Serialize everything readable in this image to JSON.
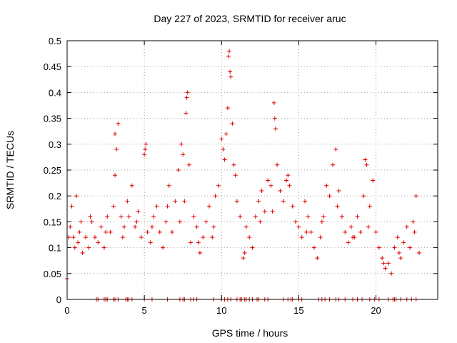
{
  "chart_data": {
    "type": "scatter",
    "title": "Day 227 of 2023, SRMTID for receiver aruc",
    "xlabel": "GPS time / hours",
    "ylabel": "SRMTID / TECUs",
    "xlim": [
      0,
      24
    ],
    "ylim": [
      0,
      0.5
    ],
    "xticks": [
      0,
      5,
      10,
      15,
      20
    ],
    "xtick_labels": [
      "0",
      "5",
      "10",
      "15",
      "20"
    ],
    "yticks": [
      0,
      0.05,
      0.1,
      0.15,
      0.2,
      0.25,
      0.3,
      0.35,
      0.4,
      0.45,
      0.5
    ],
    "ytick_labels": [
      "0",
      "0.05",
      "0.1",
      "0.15",
      "0.2",
      "0.25",
      "0.3",
      "0.35",
      "0.4",
      "0.45",
      "0.5"
    ],
    "grid": true,
    "marker": "+",
    "marker_color": "#e00000",
    "series": [
      {
        "name": "SRMTID",
        "x": [
          0.0,
          0.2,
          0.3,
          0.4,
          0.5,
          0.6,
          0.7,
          0.8,
          1.0,
          1.2,
          1.4,
          1.6,
          1.8,
          2.0,
          2.2,
          2.4,
          2.6,
          2.8,
          3.0,
          3.1,
          3.2,
          3.3,
          3.5,
          3.7,
          3.9,
          4.0,
          4.2,
          4.4,
          4.6,
          4.8,
          5.0,
          5.1,
          5.2,
          5.4,
          5.6,
          5.8,
          6.0,
          6.2,
          6.4,
          6.6,
          6.8,
          7.0,
          7.2,
          7.4,
          7.5,
          7.6,
          7.7,
          7.8,
          7.9,
          8.0,
          8.2,
          8.4,
          8.6,
          8.8,
          9.0,
          9.2,
          9.4,
          9.6,
          9.8,
          10.0,
          10.1,
          10.2,
          10.3,
          10.4,
          10.5,
          10.6,
          10.7,
          10.8,
          11.0,
          11.2,
          11.4,
          11.6,
          11.8,
          12.0,
          12.2,
          12.4,
          12.6,
          12.8,
          13.0,
          13.2,
          13.4,
          13.5,
          13.6,
          13.8,
          14.0,
          14.2,
          14.4,
          14.6,
          14.8,
          15.0,
          15.2,
          15.4,
          15.6,
          15.8,
          16.0,
          16.2,
          16.4,
          16.6,
          16.8,
          17.0,
          17.2,
          17.4,
          17.6,
          17.8,
          18.0,
          18.2,
          18.4,
          18.6,
          18.8,
          19.0,
          19.2,
          19.4,
          19.6,
          19.8,
          20.0,
          20.2,
          20.4,
          20.6,
          20.8,
          21.0,
          21.2,
          21.4,
          21.6,
          21.8,
          22.0,
          22.2,
          22.4,
          22.6,
          22.8,
          0.1,
          0.9,
          1.5,
          2.5,
          3.6,
          4.5,
          5.5,
          6.5,
          7.3,
          8.5,
          9.5,
          10.9,
          11.5,
          12.5,
          13.3,
          14.3,
          15.5,
          16.5,
          17.5,
          18.5,
          19.5,
          20.5,
          21.5,
          22.5,
          10.45,
          10.55,
          7.75,
          13.45,
          3.1,
          5.05,
          19.3
        ],
        "y": [
          0.04,
          0.14,
          0.18,
          0.12,
          0.1,
          0.2,
          0.11,
          0.13,
          0.09,
          0.12,
          0.1,
          0.15,
          0.12,
          0.11,
          0.14,
          0.1,
          0.16,
          0.13,
          0.18,
          0.24,
          0.29,
          0.34,
          0.16,
          0.14,
          0.19,
          0.16,
          0.22,
          0.14,
          0.17,
          0.12,
          0.28,
          0.3,
          0.13,
          0.11,
          0.16,
          0.18,
          0.13,
          0.1,
          0.15,
          0.22,
          0.13,
          0.19,
          0.25,
          0.3,
          0.28,
          0.19,
          0.36,
          0.4,
          0.26,
          0.11,
          0.16,
          0.14,
          0.09,
          0.12,
          0.15,
          0.18,
          0.12,
          0.2,
          0.22,
          0.31,
          0.29,
          0.27,
          0.32,
          0.37,
          0.48,
          0.43,
          0.34,
          0.26,
          0.19,
          0.16,
          0.08,
          0.14,
          0.12,
          0.1,
          0.16,
          0.19,
          0.21,
          0.17,
          0.23,
          0.22,
          0.38,
          0.33,
          0.26,
          0.21,
          0.19,
          0.23,
          0.22,
          0.18,
          0.15,
          0.14,
          0.12,
          0.19,
          0.16,
          0.13,
          0.1,
          0.08,
          0.12,
          0.16,
          0.22,
          0.2,
          0.26,
          0.29,
          0.21,
          0.16,
          0.13,
          0.11,
          0.14,
          0.12,
          0.16,
          0.13,
          0.2,
          0.26,
          0.18,
          0.23,
          0.13,
          0.1,
          0.08,
          0.06,
          0.07,
          0.05,
          0.1,
          0.12,
          0.08,
          0.11,
          0.14,
          0.1,
          0.15,
          0.2,
          0.09,
          0.12,
          0.15,
          0.16,
          0.13,
          0.12,
          0.15,
          0.14,
          0.18,
          0.15,
          0.11,
          0.14,
          0.24,
          0.09,
          0.15,
          0.17,
          0.24,
          0.13,
          0.15,
          0.18,
          0.12,
          0.14,
          0.07,
          0.09,
          0.13,
          0.47,
          0.44,
          0.39,
          0.35,
          0.32,
          0.29,
          0.27
        ],
        "zero_markers_x": [
          1.9,
          2.0,
          2.4,
          2.5,
          2.6,
          3.0,
          3.1,
          3.3,
          3.8,
          3.9,
          4.0,
          4.2,
          5.0,
          5.5,
          6.5,
          7.3,
          7.5,
          7.6,
          8.0,
          8.2,
          8.4,
          9.5,
          10.0,
          10.2,
          10.4,
          10.6,
          11.0,
          11.2,
          11.3,
          11.5,
          11.6,
          11.8,
          12.0,
          12.3,
          12.4,
          12.8,
          13.0,
          14.0,
          14.3,
          14.5,
          14.6,
          15.0,
          15.2,
          16.3,
          16.5,
          16.7,
          17.0,
          17.4,
          17.6,
          18.0,
          18.5,
          18.8,
          19.1,
          19.6,
          19.9,
          20.2,
          20.8,
          21.1,
          21.2,
          21.3,
          21.6,
          22.0,
          22.3,
          22.6
        ]
      }
    ]
  }
}
